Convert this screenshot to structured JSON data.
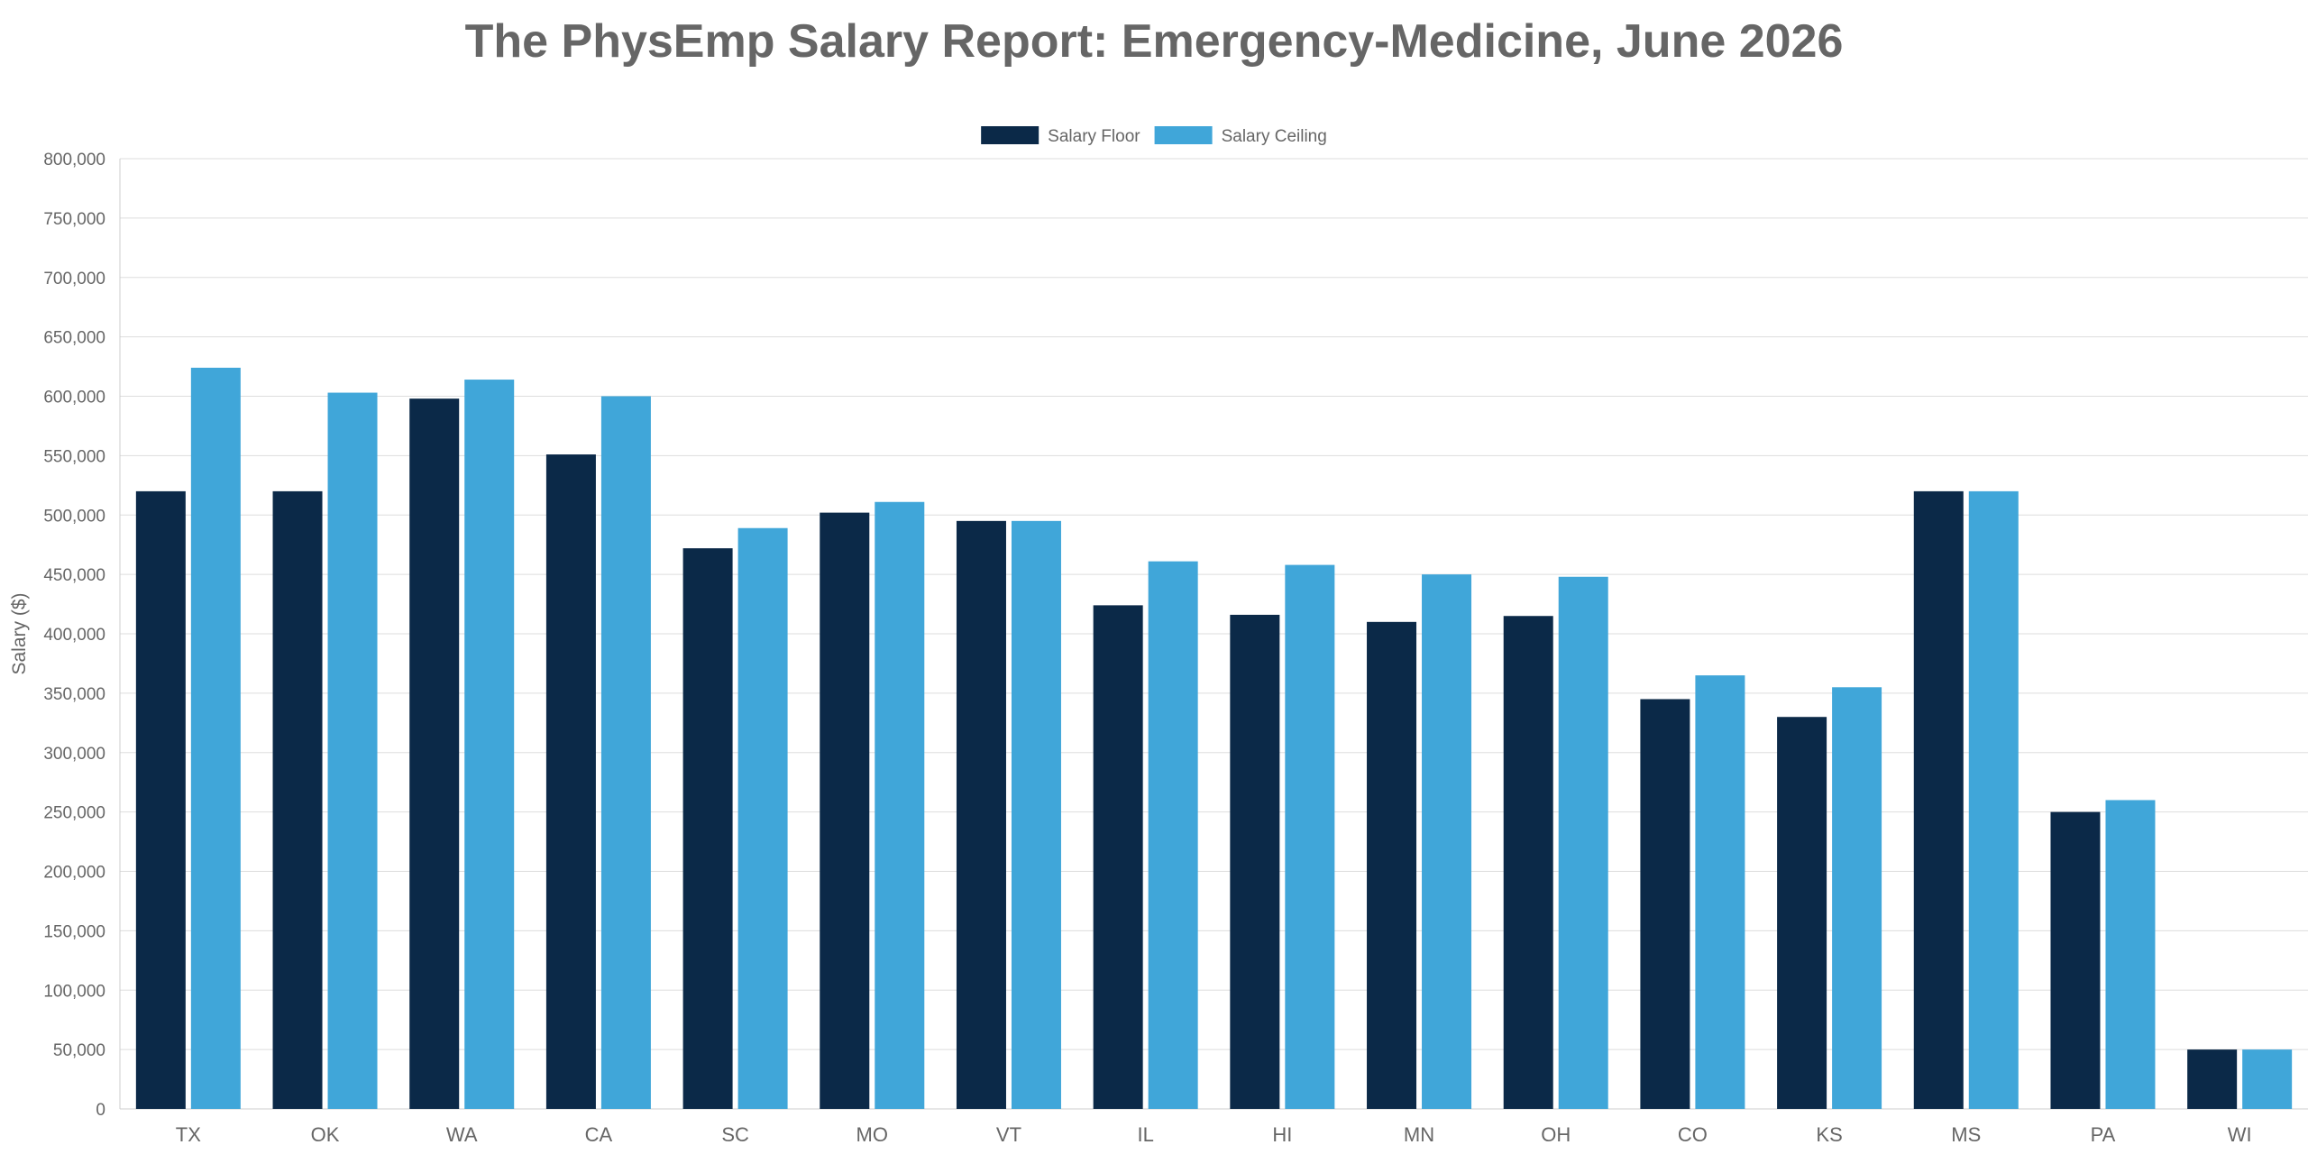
{
  "chart_data": {
    "type": "bar",
    "title": "The PhysEmp Salary Report: Emergency-Medicine, June 2026",
    "xlabel": "",
    "ylabel": "Salary ($)",
    "ylim": [
      0,
      800000
    ],
    "ytick_step": 50000,
    "grid": true,
    "legend_position": "top-center",
    "categories": [
      "TX",
      "OK",
      "WA",
      "CA",
      "SC",
      "MO",
      "VT",
      "IL",
      "HI",
      "MN",
      "OH",
      "CO",
      "KS",
      "MS",
      "PA",
      "WI"
    ],
    "series": [
      {
        "name": "Salary Floor",
        "color": "#0b2948",
        "values": [
          520000,
          520000,
          598000,
          551000,
          472000,
          502000,
          495000,
          424000,
          416000,
          410000,
          415000,
          345000,
          330000,
          520000,
          250000,
          50000
        ]
      },
      {
        "name": "Salary Ceiling",
        "color": "#40a6d9",
        "values": [
          624000,
          603000,
          614000,
          600000,
          489000,
          511000,
          495000,
          461000,
          458000,
          450000,
          448000,
          365000,
          355000,
          520000,
          260000,
          50000
        ]
      }
    ]
  }
}
